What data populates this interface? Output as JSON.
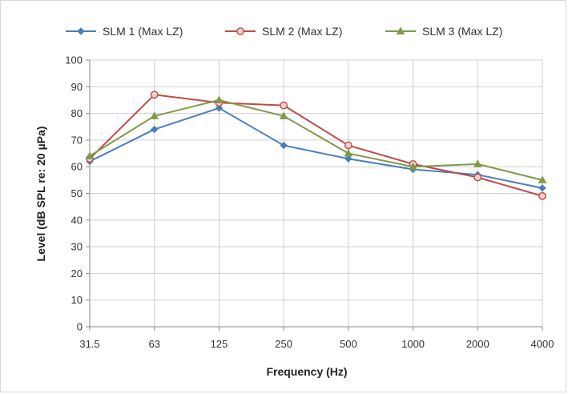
{
  "chart_data": {
    "type": "line",
    "title": "",
    "xlabel": "Frequency (Hz)",
    "ylabel": "Level (dB SPL re: 20 µPa)",
    "categories": [
      "31.5",
      "63",
      "125",
      "250",
      "500",
      "1000",
      "2000",
      "4000"
    ],
    "ylim": [
      0,
      100
    ],
    "yticks": [
      0,
      10,
      20,
      30,
      40,
      50,
      60,
      70,
      80,
      90,
      100
    ],
    "grid": true,
    "legend_position": "top",
    "series": [
      {
        "name": "SLM 1 (Max LZ)",
        "color": "#4a7ebb",
        "marker": "diamond",
        "values": [
          62,
          74,
          82,
          68,
          63,
          59,
          57,
          52
        ]
      },
      {
        "name": "SLM 2 (Max LZ)",
        "color": "#be4b48",
        "marker": "circle",
        "values": [
          63,
          87,
          84,
          83,
          68,
          61,
          56,
          49
        ]
      },
      {
        "name": "SLM 3 (Max LZ)",
        "color": "#7f9a48",
        "marker": "triangle",
        "values": [
          64,
          79,
          85,
          79,
          65,
          60,
          61,
          55
        ]
      }
    ]
  }
}
